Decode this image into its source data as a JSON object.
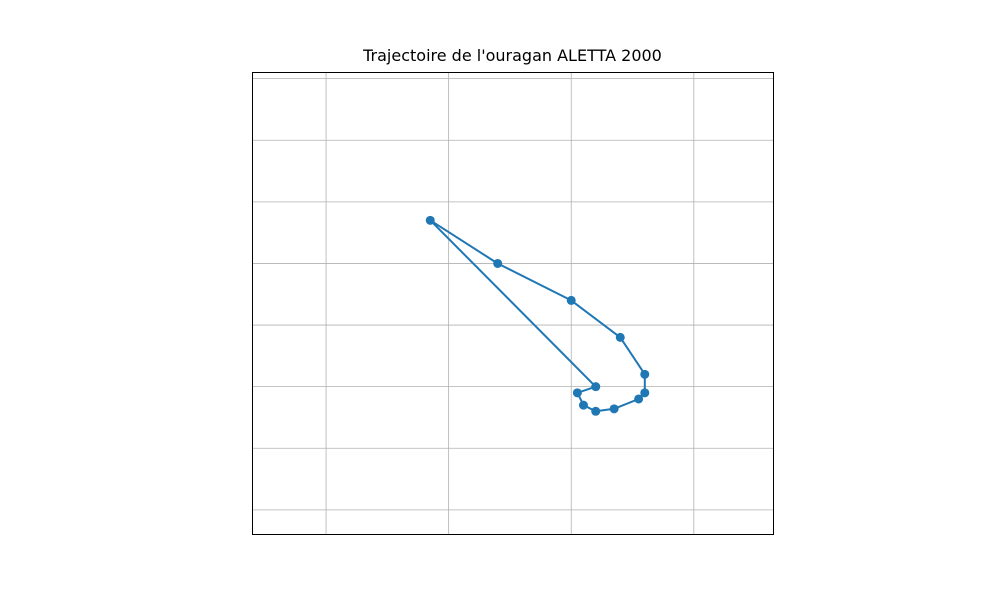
{
  "chart_data": {
    "type": "line",
    "title": "Trajectoire de l'ouragan ALETTA 2000",
    "xlabel": "",
    "ylabel": "",
    "xlim": [
      -111.1,
      -106.85
    ],
    "ylim": [
      12.7,
      16.45
    ],
    "grid": true,
    "xgrid": [
      -110.5,
      -109.5,
      -108.5,
      -107.5
    ],
    "ygrid": [
      12.9,
      13.4,
      13.9,
      14.4,
      14.9,
      15.4,
      15.9,
      16.4
    ],
    "series": [
      {
        "color": "#1f77b4",
        "marker": "circle",
        "x": [
          -108.3,
          -108.45,
          -108.4,
          -108.3,
          -108.15,
          -107.95,
          -107.9,
          -107.9,
          -108.1,
          -108.5,
          -109.1,
          -109.65
        ],
        "y": [
          13.9,
          13.85,
          13.75,
          13.7,
          13.72,
          13.8,
          13.85,
          14.0,
          14.3,
          14.6,
          14.9,
          15.25
        ]
      },
      {
        "color": "#1f77b4",
        "marker": "none",
        "x": [
          -109.65,
          -108.3
        ],
        "y": [
          15.25,
          13.9
        ]
      }
    ]
  }
}
